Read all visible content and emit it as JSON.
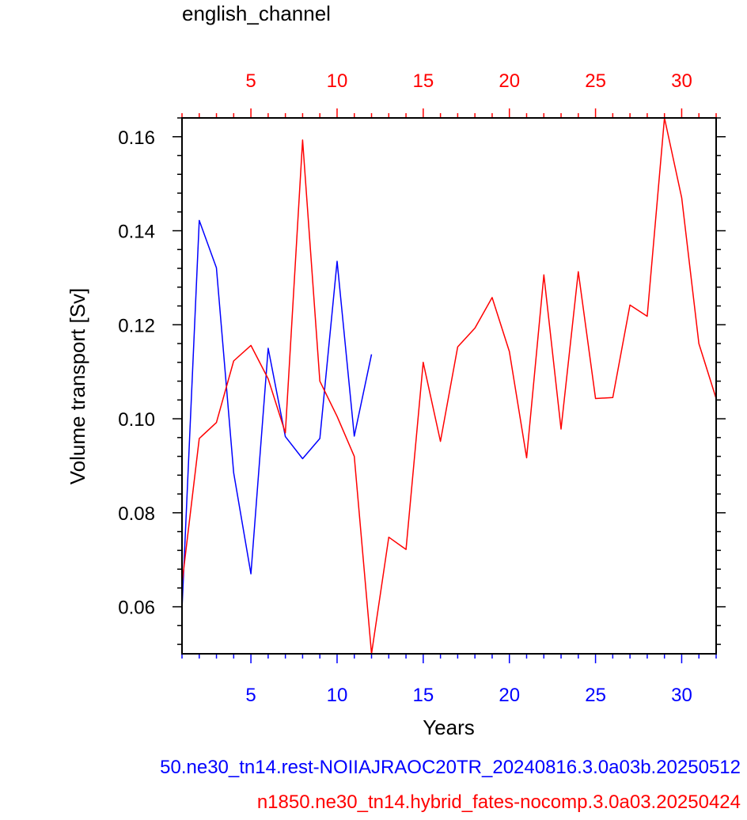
{
  "chart_data": {
    "type": "line",
    "title": "english_channel",
    "xlabel": "Years",
    "ylabel": "Volume transport [Sv]",
    "ylim": [
      0.05,
      0.164
    ],
    "yticks": [
      0.06,
      0.08,
      0.1,
      0.12,
      0.14,
      0.16
    ],
    "ytick_labels": [
      "0.06",
      "0.08",
      "0.10",
      "0.12",
      "0.14",
      "0.16"
    ],
    "bottom_axis": {
      "color": "#0000ff",
      "xlim": [
        1,
        32
      ],
      "ticks": [
        5,
        10,
        15,
        20,
        25,
        30
      ],
      "tick_labels": [
        "5",
        "10",
        "15",
        "20",
        "25",
        "30"
      ]
    },
    "top_axis": {
      "color": "#ff0000",
      "xlim": [
        1,
        32
      ],
      "ticks": [
        5,
        10,
        15,
        20,
        25,
        30
      ],
      "tick_labels": [
        "5",
        "10",
        "15",
        "20",
        "25",
        "30"
      ]
    },
    "series": [
      {
        "color": "#0000ff",
        "x": [
          1,
          2,
          3,
          4,
          5,
          6,
          7,
          8,
          9,
          10,
          11,
          12
        ],
        "values": [
          0.0595,
          0.1422,
          0.1321,
          0.0885,
          0.067,
          0.115,
          0.0962,
          0.0915,
          0.0958,
          0.1335,
          0.0963,
          0.1137
        ]
      },
      {
        "color": "#ff0000",
        "x": [
          1,
          2,
          3,
          4,
          5,
          6,
          7,
          8,
          9,
          10,
          11,
          12,
          13,
          14,
          15,
          16,
          17,
          18,
          19,
          20,
          21,
          22,
          23,
          24,
          25,
          26,
          27,
          28,
          29,
          30,
          31,
          32
        ],
        "values": [
          0.065,
          0.0958,
          0.0992,
          0.1123,
          0.1156,
          0.1085,
          0.097,
          0.1593,
          0.108,
          0.1005,
          0.092,
          0.05,
          0.0748,
          0.0722,
          0.112,
          0.0952,
          0.1153,
          0.1193,
          0.1258,
          0.1143,
          0.0917,
          0.1306,
          0.0978,
          0.1313,
          0.1043,
          0.1045,
          0.1242,
          0.1218,
          0.164,
          0.147,
          0.116,
          0.1043
        ]
      }
    ]
  },
  "captions": {
    "blue": "50.ne30_tn14.rest-NOIIAJRAOC20TR_20240816.3.0a03b.20250512",
    "red": "n1850.ne30_tn14.hybrid_fates-nocomp.3.0a03.20250424"
  }
}
